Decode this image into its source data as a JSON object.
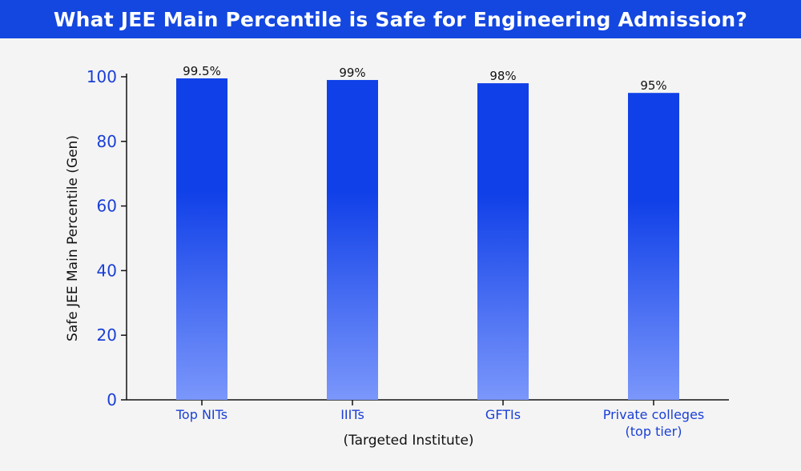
{
  "header": {
    "title": "What JEE Main Percentile is Safe for Engineering Admission?"
  },
  "colors": {
    "banner": "#1447e0",
    "bar_top": "#1040e8",
    "bar_bottom": "#7b97fb",
    "tick_label": "#1a3fd6",
    "axis": "#111111"
  },
  "chart_data": {
    "type": "bar",
    "title": "What JEE Main Percentile is Safe for Engineering Admission?",
    "xlabel": "(Targeted Institute)",
    "ylabel": "Safe JEE Main Percentile (Gen)",
    "categories": [
      "Top NITs",
      "IIITs",
      "GFTIs",
      "Private colleges (top tier)"
    ],
    "category_lines": [
      [
        "Top NITs"
      ],
      [
        "IIITs"
      ],
      [
        "GFTIs"
      ],
      [
        "Private colleges",
        "(top tier)"
      ]
    ],
    "values": [
      99.5,
      99,
      98,
      95
    ],
    "data_labels": [
      "99.5%",
      "99%",
      "98%",
      "95%"
    ],
    "ylim": [
      0,
      100
    ],
    "yticks": [
      0,
      20,
      40,
      60,
      80,
      100
    ],
    "grid": false,
    "legend": "none"
  }
}
